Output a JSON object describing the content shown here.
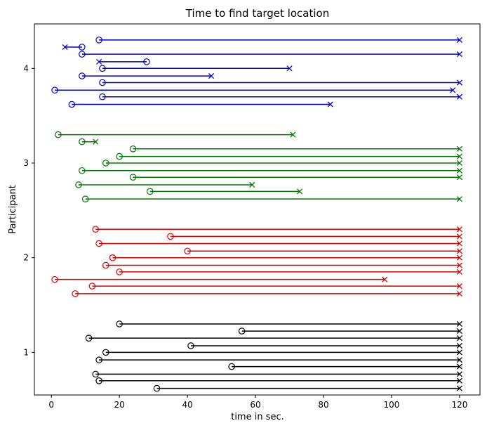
{
  "chart_data": {
    "type": "line",
    "title": "Time to find target location",
    "xlabel": "time in sec.",
    "ylabel": "Participant",
    "xlim": [
      -5,
      126
    ],
    "ylim": [
      0.55,
      4.47
    ],
    "xticks": [
      "0",
      "20",
      "40",
      "60",
      "80",
      "100",
      "120"
    ],
    "yticks": [
      "1",
      "2",
      "3",
      "4"
    ],
    "grid": false,
    "series": [
      {
        "color": "#0000cc",
        "segments": [
          {
            "y": 4.3,
            "start": 14,
            "end": 120
          },
          {
            "y": 4.225,
            "start": 9,
            "end": 4
          },
          {
            "y": 4.15,
            "start": 9,
            "end": 120
          },
          {
            "y": 4.07,
            "start": 28,
            "end": 14
          },
          {
            "y": 4.0,
            "start": 15,
            "end": 70
          },
          {
            "y": 3.92,
            "start": 9,
            "end": 47
          },
          {
            "y": 3.85,
            "start": 15,
            "end": 120
          },
          {
            "y": 3.77,
            "start": 1,
            "end": 118
          },
          {
            "y": 3.7,
            "start": 15,
            "end": 120
          },
          {
            "y": 3.62,
            "start": 6,
            "end": 82
          }
        ]
      },
      {
        "color": "#007700",
        "segments": [
          {
            "y": 3.3,
            "start": 2,
            "end": 71
          },
          {
            "y": 3.225,
            "start": 9,
            "end": 13
          },
          {
            "y": 3.15,
            "start": 24,
            "end": 120
          },
          {
            "y": 3.07,
            "start": 20,
            "end": 120
          },
          {
            "y": 3.0,
            "start": 16,
            "end": 120
          },
          {
            "y": 2.92,
            "start": 9,
            "end": 120
          },
          {
            "y": 2.85,
            "start": 24,
            "end": 120
          },
          {
            "y": 2.77,
            "start": 8,
            "end": 59
          },
          {
            "y": 2.7,
            "start": 29,
            "end": 73
          },
          {
            "y": 2.62,
            "start": 10,
            "end": 120
          }
        ]
      },
      {
        "color": "#dd0000",
        "segments": [
          {
            "y": 2.3,
            "start": 13,
            "end": 120
          },
          {
            "y": 2.225,
            "start": 35,
            "end": 120
          },
          {
            "y": 2.15,
            "start": 14,
            "end": 120
          },
          {
            "y": 2.07,
            "start": 40,
            "end": 120
          },
          {
            "y": 2.0,
            "start": 18,
            "end": 120
          },
          {
            "y": 1.92,
            "start": 16,
            "end": 120
          },
          {
            "y": 1.85,
            "start": 20,
            "end": 120
          },
          {
            "y": 1.77,
            "start": 1,
            "end": 98
          },
          {
            "y": 1.7,
            "start": 12,
            "end": 120
          },
          {
            "y": 1.62,
            "start": 7,
            "end": 120
          }
        ]
      },
      {
        "color": "#000000",
        "segments": [
          {
            "y": 1.3,
            "start": 20,
            "end": 120
          },
          {
            "y": 1.225,
            "start": 56,
            "end": 120
          },
          {
            "y": 1.15,
            "start": 11,
            "end": 120
          },
          {
            "y": 1.07,
            "start": 41,
            "end": 120
          },
          {
            "y": 1.0,
            "start": 16,
            "end": 120
          },
          {
            "y": 0.92,
            "start": 14,
            "end": 120
          },
          {
            "y": 0.85,
            "start": 53,
            "end": 120
          },
          {
            "y": 0.77,
            "start": 13,
            "end": 120
          },
          {
            "y": 0.7,
            "start": 14,
            "end": 120
          },
          {
            "y": 0.62,
            "start": 31,
            "end": 120
          }
        ]
      }
    ]
  }
}
